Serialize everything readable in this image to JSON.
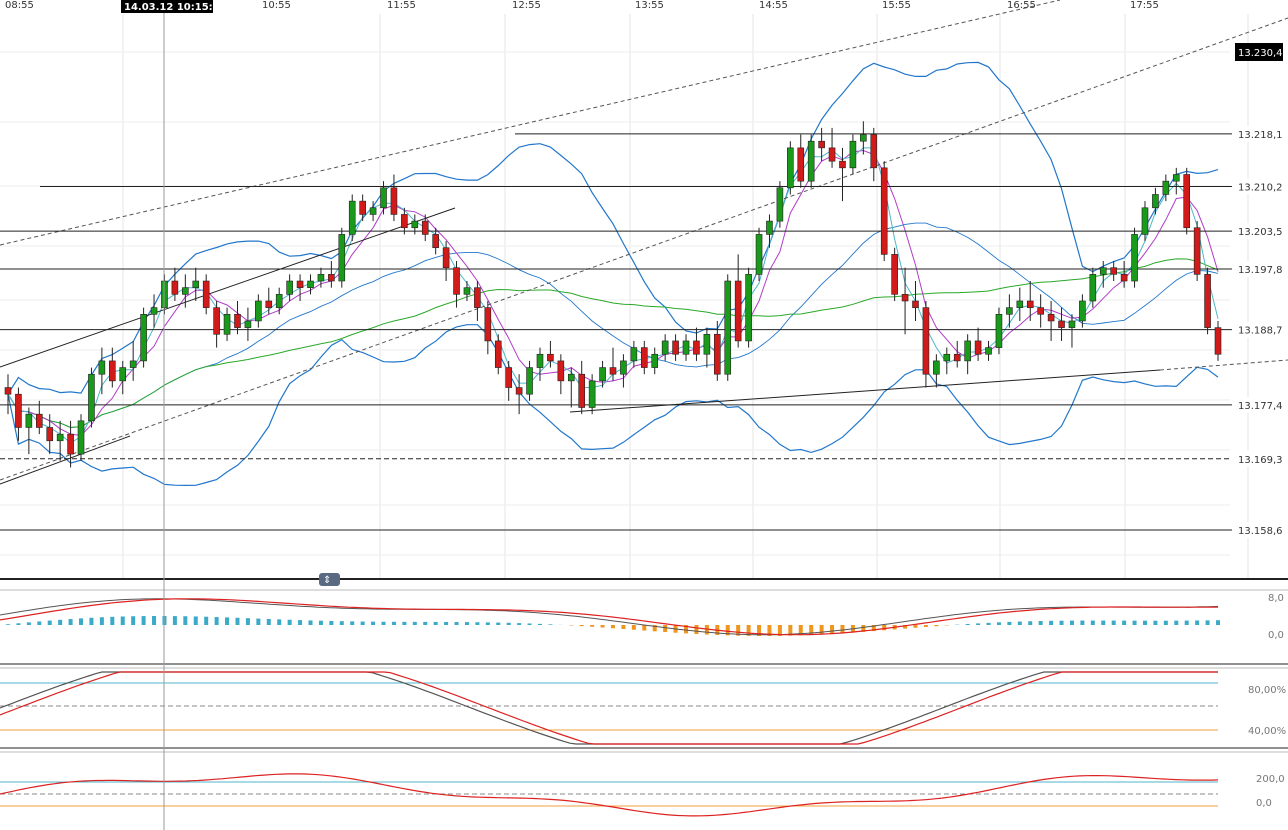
{
  "chart_data": {
    "type": "candlestick",
    "instrument_scale": "price",
    "time_ticks": [
      "08:55",
      "10:55",
      "11:55",
      "12:55",
      "13:55",
      "14:55",
      "15:55",
      "16:55",
      "17:55"
    ],
    "cursor_label": "14.03.12 10:15:00",
    "price_lines": [
      {
        "value": 13218.1,
        "label": "13.218,1"
      },
      {
        "value": 13210.2,
        "label": "13.210,2"
      },
      {
        "value": 13203.5,
        "label": "13.203,5"
      },
      {
        "value": 13197.8,
        "label": "13.197,8"
      },
      {
        "value": 13188.7,
        "label": "13.188,7"
      },
      {
        "value": 13177.4,
        "label": "13.177,4"
      },
      {
        "value": 13169.3,
        "label": "13.169,3",
        "dashed": true
      },
      {
        "value": 13158.6,
        "label": "13.158,6"
      }
    ],
    "current_price": {
      "value": 13230.4,
      "label": "13.230,4"
    },
    "candles": [
      [
        13180,
        13182,
        13176,
        13179
      ],
      [
        13179,
        13180,
        13172,
        13174
      ],
      [
        13174,
        13177,
        13170,
        13176
      ],
      [
        13176,
        13178,
        13173,
        13174
      ],
      [
        13174,
        13176,
        13170,
        13172
      ],
      [
        13172,
        13175,
        13169,
        13173
      ],
      [
        13173,
        13175,
        13168,
        13170
      ],
      [
        13170,
        13176,
        13169,
        13175
      ],
      [
        13175,
        13183,
        13174,
        13182
      ],
      [
        13182,
        13186,
        13179,
        13184
      ],
      [
        13184,
        13186,
        13180,
        13181
      ],
      [
        13181,
        13184,
        13179,
        13183
      ],
      [
        13183,
        13187,
        13181,
        13184
      ],
      [
        13184,
        13192,
        13183,
        13191
      ],
      [
        13191,
        13194,
        13189,
        13192
      ],
      [
        13192,
        13197,
        13191,
        13196
      ],
      [
        13196,
        13198,
        13193,
        13194
      ],
      [
        13194,
        13197,
        13192,
        13195
      ],
      [
        13195,
        13198,
        13193,
        13196
      ],
      [
        13196,
        13197,
        13191,
        13192
      ],
      [
        13192,
        13193,
        13186,
        13188
      ],
      [
        13188,
        13192,
        13187,
        13191
      ],
      [
        13191,
        13193,
        13188,
        13189
      ],
      [
        13189,
        13192,
        13187,
        13190
      ],
      [
        13190,
        13194,
        13189,
        13193
      ],
      [
        13193,
        13195,
        13191,
        13192
      ],
      [
        13192,
        13195,
        13191,
        13194
      ],
      [
        13194,
        13197,
        13193,
        13196
      ],
      [
        13196,
        13197,
        13193,
        13195
      ],
      [
        13195,
        13197,
        13194,
        13196
      ],
      [
        13196,
        13198,
        13195,
        13197
      ],
      [
        13197,
        13199,
        13195,
        13196
      ],
      [
        13196,
        13204,
        13195,
        13203
      ],
      [
        13203,
        13209,
        13202,
        13208
      ],
      [
        13208,
        13209,
        13205,
        13206
      ],
      [
        13206,
        13208,
        13205,
        13207
      ],
      [
        13207,
        13211,
        13206,
        13210
      ],
      [
        13210,
        13212,
        13205,
        13206
      ],
      [
        13206,
        13207,
        13203,
        13204
      ],
      [
        13204,
        13206,
        13203,
        13205
      ],
      [
        13205,
        13206,
        13202,
        13203
      ],
      [
        13203,
        13204,
        13200,
        13201
      ],
      [
        13201,
        13202,
        13196,
        13198
      ],
      [
        13198,
        13199,
        13192,
        13194
      ],
      [
        13194,
        13196,
        13193,
        13195
      ],
      [
        13195,
        13196,
        13190,
        13192
      ],
      [
        13192,
        13193,
        13185,
        13187
      ],
      [
        13187,
        13188,
        13182,
        13183
      ],
      [
        13183,
        13184,
        13178,
        13180
      ],
      [
        13180,
        13182,
        13176,
        13179
      ],
      [
        13179,
        13184,
        13178,
        13183
      ],
      [
        13183,
        13186,
        13181,
        13185
      ],
      [
        13185,
        13187,
        13183,
        13184
      ],
      [
        13184,
        13185,
        13179,
        13181
      ],
      [
        13181,
        13183,
        13177,
        13182
      ],
      [
        13182,
        13184,
        13176,
        13177
      ],
      [
        13177,
        13182,
        13176,
        13181
      ],
      [
        13181,
        13184,
        13180,
        13183
      ],
      [
        13183,
        13186,
        13181,
        13182
      ],
      [
        13182,
        13185,
        13180,
        13184
      ],
      [
        13184,
        13187,
        13183,
        13186
      ],
      [
        13186,
        13187,
        13182,
        13183
      ],
      [
        13183,
        13186,
        13182,
        13185
      ],
      [
        13185,
        13188,
        13184,
        13187
      ],
      [
        13187,
        13188,
        13184,
        13185
      ],
      [
        13185,
        13188,
        13184,
        13187
      ],
      [
        13187,
        13189,
        13184,
        13185
      ],
      [
        13185,
        13189,
        13183,
        13188
      ],
      [
        13188,
        13190,
        13181,
        13182
      ],
      [
        13182,
        13197,
        13181,
        13196
      ],
      [
        13196,
        13200,
        13186,
        13187
      ],
      [
        13187,
        13198,
        13186,
        13197
      ],
      [
        13197,
        13204,
        13196,
        13203
      ],
      [
        13203,
        13206,
        13201,
        13205
      ],
      [
        13205,
        13211,
        13204,
        13210
      ],
      [
        13210,
        13217,
        13209,
        13216
      ],
      [
        13216,
        13218,
        13210,
        13211
      ],
      [
        13211,
        13218,
        13210,
        13217
      ],
      [
        13217,
        13219,
        13214,
        13216
      ],
      [
        13216,
        13219,
        13213,
        13214
      ],
      [
        13214,
        13216,
        13208,
        13213
      ],
      [
        13213,
        13218,
        13212,
        13217
      ],
      [
        13217,
        13220,
        13215,
        13218
      ],
      [
        13218,
        13219,
        13211,
        13213
      ],
      [
        13213,
        13214,
        13199,
        13200
      ],
      [
        13200,
        13201,
        13193,
        13194
      ],
      [
        13194,
        13198,
        13188,
        13193
      ],
      [
        13193,
        13196,
        13190,
        13192
      ],
      [
        13192,
        13193,
        13180,
        13182
      ],
      [
        13182,
        13185,
        13180,
        13184
      ],
      [
        13184,
        13186,
        13182,
        13185
      ],
      [
        13185,
        13187,
        13183,
        13184
      ],
      [
        13184,
        13188,
        13182,
        13187
      ],
      [
        13187,
        13189,
        13184,
        13185
      ],
      [
        13185,
        13187,
        13184,
        13186
      ],
      [
        13186,
        13192,
        13185,
        13191
      ],
      [
        13191,
        13194,
        13189,
        13192
      ],
      [
        13192,
        13195,
        13190,
        13193
      ],
      [
        13193,
        13196,
        13190,
        13192
      ],
      [
        13192,
        13194,
        13189,
        13191
      ],
      [
        13191,
        13193,
        13187,
        13190
      ],
      [
        13190,
        13192,
        13187,
        13189
      ],
      [
        13189,
        13191,
        13186,
        13190
      ],
      [
        13190,
        13194,
        13189,
        13193
      ],
      [
        13193,
        13198,
        13192,
        13197
      ],
      [
        13197,
        13199,
        13195,
        13198
      ],
      [
        13198,
        13199,
        13196,
        13197
      ],
      [
        13197,
        13199,
        13195,
        13196
      ],
      [
        13196,
        13204,
        13195,
        13203
      ],
      [
        13203,
        13208,
        13202,
        13207
      ],
      [
        13207,
        13210,
        13206,
        13209
      ],
      [
        13209,
        13212,
        13208,
        13211
      ],
      [
        13211,
        13213,
        13209,
        13212
      ],
      [
        13212,
        13213,
        13203,
        13204
      ],
      [
        13204,
        13205,
        13196,
        13197
      ],
      [
        13197,
        13198,
        13188,
        13189
      ],
      [
        13189,
        13190,
        13184,
        13185
      ]
    ],
    "indicator_labels": {
      "macd": [
        "8,0",
        "0,0"
      ],
      "stoch": [
        "80,00%",
        "40,00%"
      ],
      "cci": [
        "200,0",
        "0,0"
      ]
    }
  }
}
